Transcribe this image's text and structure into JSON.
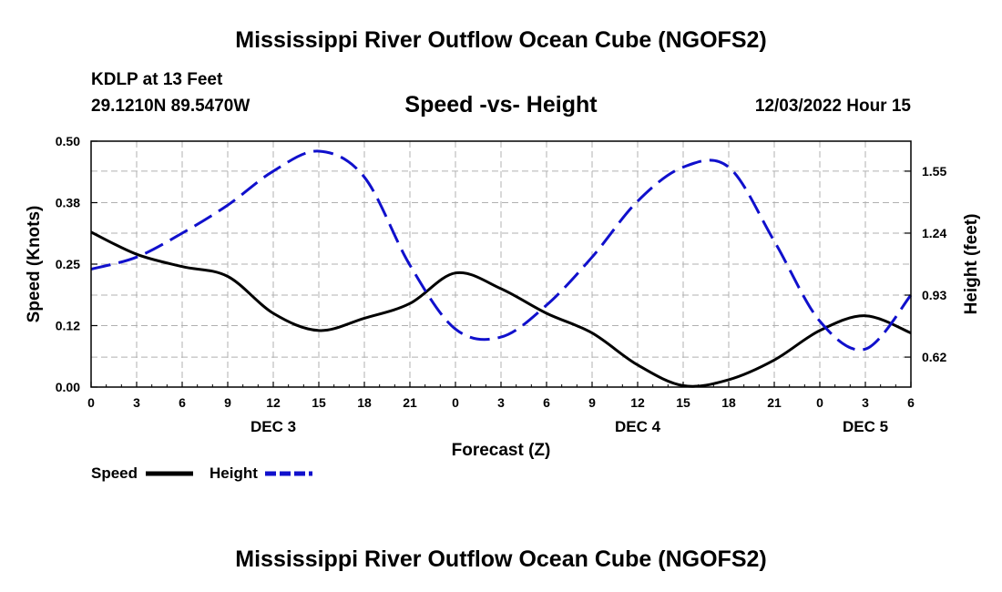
{
  "header": {
    "title": "Mississippi River Outflow Ocean Cube (NGOFS2)",
    "station": "KDLP at 13 Feet",
    "coords": "29.1210N  89.5470W",
    "subtitle": "Speed -vs- Height",
    "datetime": "12/03/2022 Hour 15"
  },
  "footer": {
    "title": "Mississippi River Outflow Ocean Cube (NGOFS2)"
  },
  "colors": {
    "speed": "#000000",
    "height": "#1010cc",
    "grid": "#b0b0b0"
  },
  "chart_data": {
    "type": "line",
    "title": "Speed -vs- Height",
    "xlabel": "Forecast (Z)",
    "ylabel": "Speed (Knots)",
    "y2label": "Height (feet)",
    "xlim": [
      0,
      54
    ],
    "ylim": [
      0,
      0.5
    ],
    "y2lim": [
      0.47,
      1.7
    ],
    "x_tick_values": [
      0,
      3,
      6,
      9,
      12,
      15,
      18,
      21,
      24,
      27,
      30,
      33,
      36,
      39,
      42,
      45,
      48,
      51,
      54
    ],
    "x_tick_labels": [
      "0",
      "3",
      "6",
      "9",
      "12",
      "15",
      "18",
      "21",
      "0",
      "3",
      "6",
      "9",
      "12",
      "15",
      "18",
      "21",
      "0",
      "3",
      "6"
    ],
    "y_tick_values": [
      0.0,
      0.125,
      0.25,
      0.375,
      0.5
    ],
    "y_tick_labels": [
      "0.00",
      "0.12",
      "0.25",
      "0.38",
      "0.50"
    ],
    "y2_tick_values": [
      0.62,
      0.93,
      1.24,
      1.55
    ],
    "y2_tick_labels": [
      "0.62",
      "0.93",
      "1.24",
      "1.55"
    ],
    "day_labels": [
      {
        "x": 12,
        "label": "DEC 3"
      },
      {
        "x": 36,
        "label": "DEC 4"
      },
      {
        "x": 51,
        "label": "DEC 5"
      }
    ],
    "legend": [
      "Speed",
      "Height"
    ],
    "series": [
      {
        "name": "Speed",
        "axis": "left",
        "style": "solid",
        "x": [
          0,
          3,
          6,
          9,
          12,
          15,
          18,
          21,
          24,
          27,
          30,
          33,
          36,
          39,
          42,
          45,
          48,
          51,
          54
        ],
        "values": [
          0.315,
          0.27,
          0.245,
          0.225,
          0.15,
          0.115,
          0.14,
          0.17,
          0.232,
          0.2,
          0.15,
          0.11,
          0.045,
          0.003,
          0.015,
          0.055,
          0.115,
          0.145,
          0.11
        ]
      },
      {
        "name": "Height",
        "axis": "right",
        "style": "dashed",
        "x": [
          0,
          3,
          6,
          9,
          12,
          15,
          18,
          21,
          24,
          27,
          30,
          33,
          36,
          39,
          42,
          45,
          48,
          51,
          54
        ],
        "values": [
          1.06,
          1.12,
          1.24,
          1.38,
          1.55,
          1.65,
          1.52,
          1.08,
          0.76,
          0.72,
          0.88,
          1.12,
          1.4,
          1.57,
          1.57,
          1.2,
          0.8,
          0.66,
          0.93
        ]
      }
    ]
  }
}
